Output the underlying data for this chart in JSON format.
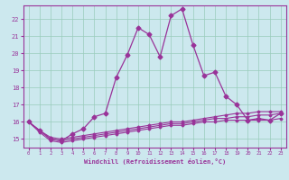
{
  "xlabel": "Windchill (Refroidissement éolien,°C)",
  "background_color": "#cce8ee",
  "line_color": "#993399",
  "grid_color": "#99ccbb",
  "xlim": [
    -0.5,
    23.5
  ],
  "ylim": [
    14.5,
    22.8
  ],
  "x_ticks": [
    0,
    1,
    2,
    3,
    4,
    5,
    6,
    7,
    8,
    9,
    10,
    11,
    12,
    13,
    14,
    15,
    16,
    17,
    18,
    19,
    20,
    21,
    22,
    23
  ],
  "y_ticks": [
    15,
    16,
    17,
    18,
    19,
    20,
    21,
    22
  ],
  "series": [
    {
      "x": [
        0,
        1,
        2,
        3,
        4,
        5,
        6,
        7,
        8,
        9,
        10,
        11,
        12,
        13,
        14,
        15,
        16,
        17,
        18,
        19,
        20,
        21,
        22,
        23
      ],
      "y": [
        16.0,
        15.5,
        15.0,
        14.9,
        15.3,
        15.6,
        16.3,
        16.5,
        18.6,
        19.9,
        21.5,
        21.1,
        19.8,
        22.2,
        22.6,
        20.5,
        18.7,
        18.9,
        17.5,
        17.0,
        16.1,
        16.2,
        16.1,
        16.5
      ],
      "marker": "D",
      "markersize": 2.5,
      "linewidth": 0.9
    },
    {
      "x": [
        0,
        1,
        2,
        3,
        4,
        5,
        6,
        7,
        8,
        9,
        10,
        11,
        12,
        13,
        14,
        15,
        16,
        17,
        18,
        19,
        20,
        21,
        22,
        23
      ],
      "y": [
        16.0,
        15.5,
        15.1,
        15.0,
        15.1,
        15.2,
        15.3,
        15.4,
        15.5,
        15.6,
        15.7,
        15.8,
        15.9,
        16.0,
        16.0,
        16.1,
        16.2,
        16.3,
        16.4,
        16.5,
        16.5,
        16.6,
        16.6,
        16.6
      ],
      "marker": "D",
      "markersize": 1.5,
      "linewidth": 0.8
    },
    {
      "x": [
        0,
        1,
        2,
        3,
        4,
        5,
        6,
        7,
        8,
        9,
        10,
        11,
        12,
        13,
        14,
        15,
        16,
        17,
        18,
        19,
        20,
        21,
        22,
        23
      ],
      "y": [
        16.0,
        15.5,
        15.0,
        14.9,
        15.0,
        15.1,
        15.2,
        15.3,
        15.4,
        15.5,
        15.6,
        15.7,
        15.8,
        15.9,
        15.9,
        16.0,
        16.1,
        16.2,
        16.2,
        16.3,
        16.3,
        16.4,
        16.4,
        16.5
      ],
      "marker": "D",
      "markersize": 1.5,
      "linewidth": 0.8
    },
    {
      "x": [
        0,
        1,
        2,
        3,
        4,
        5,
        6,
        7,
        8,
        9,
        10,
        11,
        12,
        13,
        14,
        15,
        16,
        17,
        18,
        19,
        20,
        21,
        22,
        23
      ],
      "y": [
        16.0,
        15.4,
        14.9,
        14.8,
        14.9,
        15.0,
        15.1,
        15.2,
        15.3,
        15.4,
        15.5,
        15.6,
        15.7,
        15.8,
        15.8,
        15.9,
        16.0,
        16.0,
        16.1,
        16.1,
        16.1,
        16.1,
        16.1,
        16.2
      ],
      "marker": "D",
      "markersize": 1.5,
      "linewidth": 0.8
    }
  ]
}
